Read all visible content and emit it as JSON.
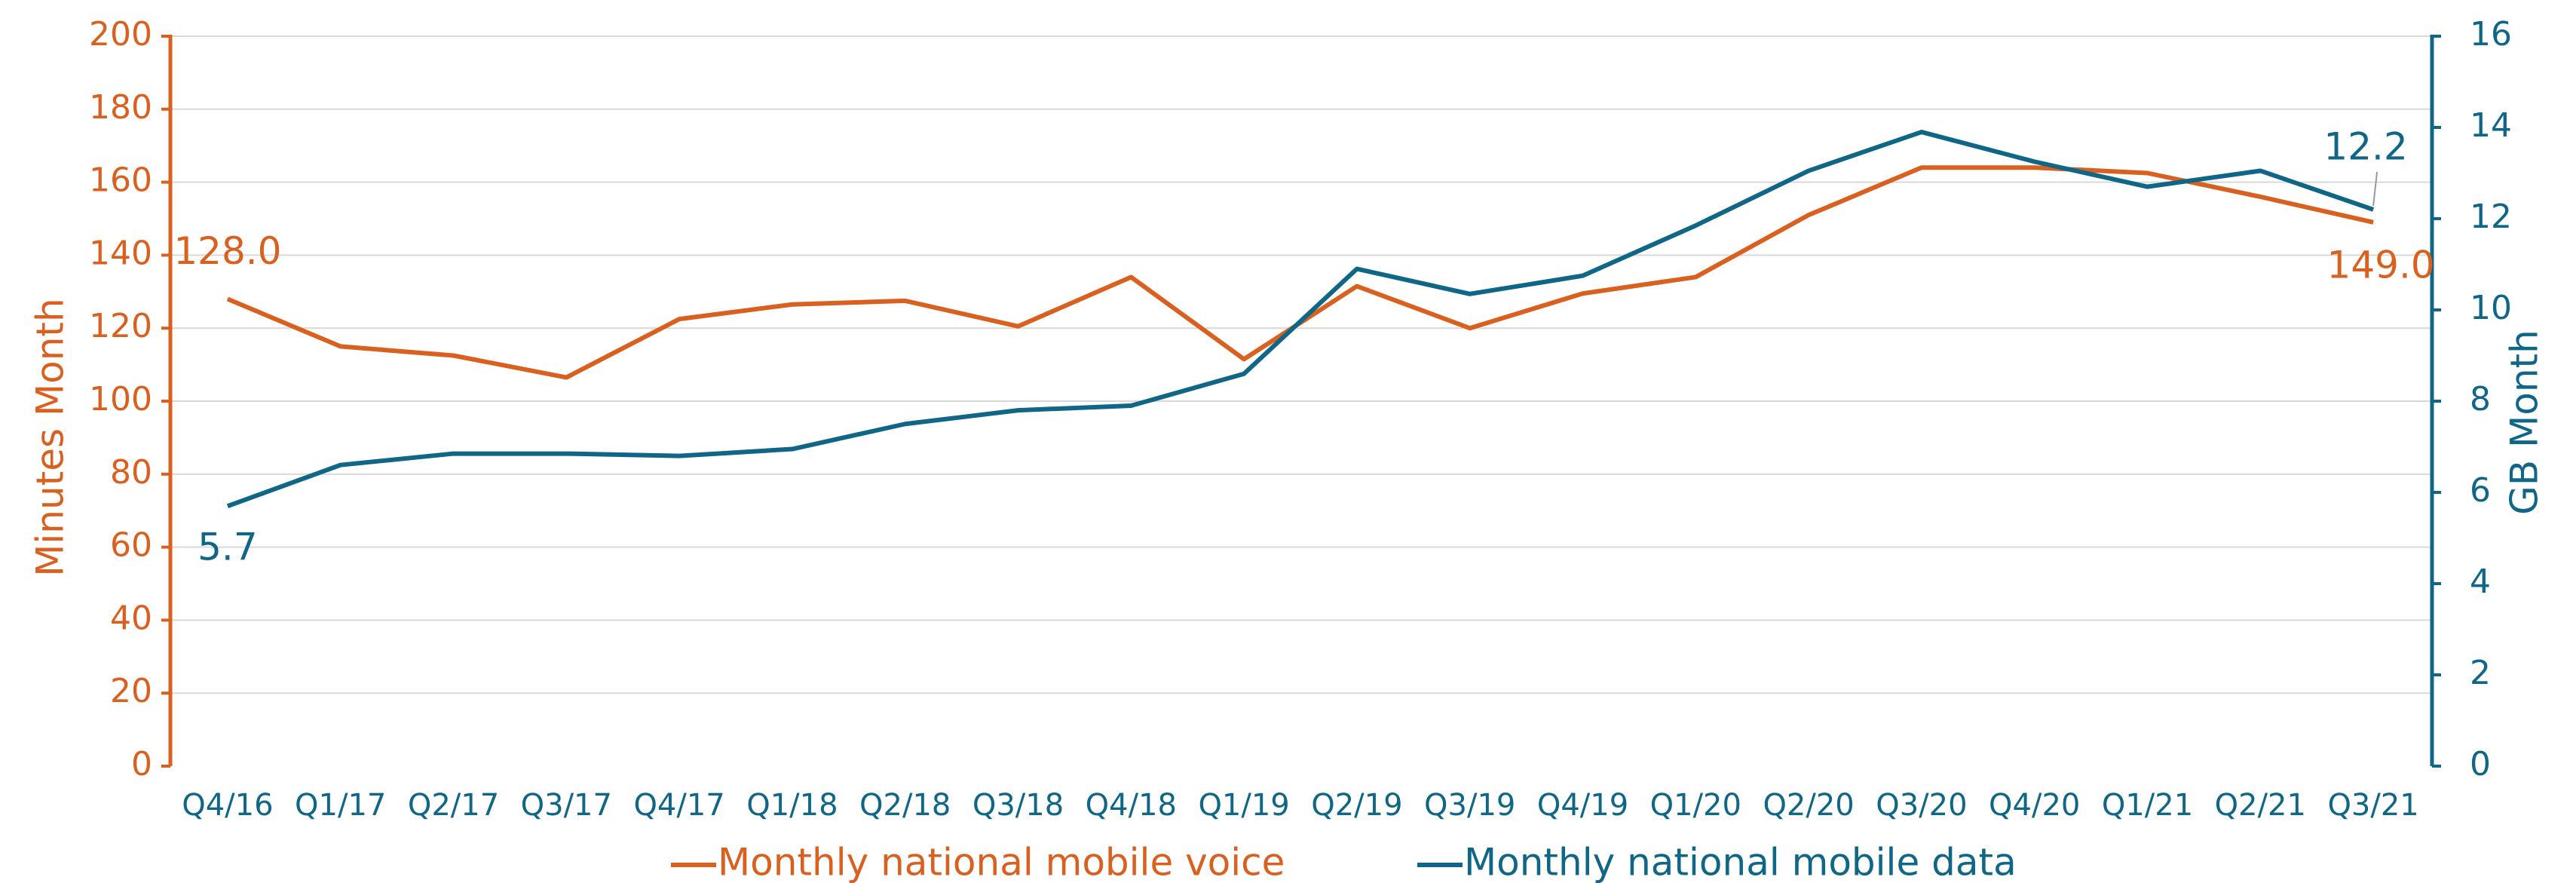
{
  "chart_data": {
    "type": "line",
    "categories": [
      "Q4/16",
      "Q1/17",
      "Q2/17",
      "Q3/17",
      "Q4/17",
      "Q1/18",
      "Q2/18",
      "Q3/18",
      "Q4/18",
      "Q1/19",
      "Q2/19",
      "Q3/19",
      "Q4/19",
      "Q1/20",
      "Q2/20",
      "Q3/20",
      "Q4/20",
      "Q1/21",
      "Q2/21",
      "Q3/21"
    ],
    "series": [
      {
        "name": "Monthly national mobile voice",
        "color": "#d9601e",
        "axis": "y",
        "values": [
          128.0,
          115,
          112.5,
          106.5,
          122.5,
          126.5,
          127.5,
          120.5,
          134,
          111.5,
          131.5,
          120,
          129.5,
          134,
          151,
          164,
          164,
          162.5,
          156,
          149.0
        ],
        "value_labels": [
          "128.0",
          null,
          null,
          null,
          null,
          null,
          null,
          null,
          null,
          null,
          null,
          null,
          null,
          null,
          null,
          null,
          null,
          null,
          null,
          "149.0"
        ]
      },
      {
        "name": "Monthly national mobile data",
        "color": "#0f6687",
        "axis": "y2",
        "values": [
          5.7,
          6.6,
          6.85,
          6.85,
          6.8,
          6.95,
          7.5,
          7.8,
          7.9,
          8.6,
          10.9,
          10.35,
          10.75,
          11.85,
          13.05,
          13.9,
          13.25,
          12.7,
          13.05,
          12.2
        ],
        "value_labels": [
          "5.7",
          null,
          null,
          null,
          null,
          null,
          null,
          null,
          null,
          null,
          null,
          null,
          null,
          null,
          null,
          null,
          null,
          null,
          null,
          "12.2"
        ]
      }
    ],
    "ylabel": "Minutes Month",
    "y2label": "GB Month",
    "ylim": [
      0,
      200
    ],
    "yticks": [
      0,
      20,
      40,
      60,
      80,
      100,
      120,
      140,
      160,
      180,
      200
    ],
    "y2lim": [
      0,
      16
    ],
    "y2ticks": [
      0,
      2,
      4,
      6,
      8,
      10,
      12,
      14,
      16
    ],
    "grid": true
  }
}
